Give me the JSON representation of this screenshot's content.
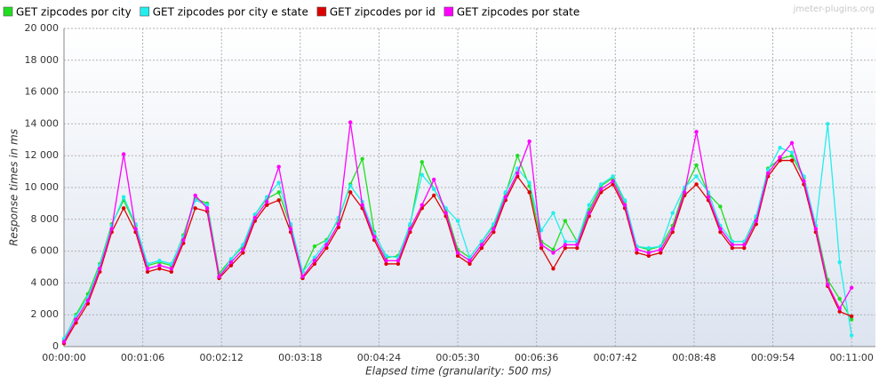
{
  "chart_data": {
    "type": "line",
    "watermark": "jmeter-plugins.org",
    "xlabel": "Elapsed time (granularity: 500 ms)",
    "ylabel": "Response times in ms",
    "xlim": [
      0,
      680
    ],
    "ylim": [
      0,
      20000
    ],
    "grid": true,
    "legend": "top",
    "xticks": [
      {
        "value": 0,
        "label": "00:00:00"
      },
      {
        "value": 66,
        "label": "00:01:06"
      },
      {
        "value": 132,
        "label": "00:02:12"
      },
      {
        "value": 198,
        "label": "00:03:18"
      },
      {
        "value": 264,
        "label": "00:04:24"
      },
      {
        "value": 330,
        "label": "00:05:30"
      },
      {
        "value": 396,
        "label": "00:06:36"
      },
      {
        "value": 462,
        "label": "00:07:42"
      },
      {
        "value": 528,
        "label": "00:08:48"
      },
      {
        "value": 594,
        "label": "00:09:54"
      },
      {
        "value": 660,
        "label": "00:11:00"
      }
    ],
    "yticks": [
      0,
      {
        "value": 2000,
        "label": "2 000"
      },
      {
        "value": 4000,
        "label": "4 000"
      },
      {
        "value": 6000,
        "label": "6 000"
      },
      {
        "value": 8000,
        "label": "8 000"
      },
      {
        "value": 10000,
        "label": "10 000"
      },
      {
        "value": 12000,
        "label": "12 000"
      },
      {
        "value": 14000,
        "label": "14 000"
      },
      {
        "value": 16000,
        "label": "16 000"
      },
      {
        "value": 18000,
        "label": "18 000"
      },
      {
        "value": 20000,
        "label": "20 000"
      }
    ],
    "x": [
      0,
      10,
      20,
      30,
      40,
      50,
      60,
      70,
      80,
      90,
      100,
      110,
      120,
      130,
      140,
      150,
      160,
      170,
      180,
      190,
      200,
      210,
      220,
      230,
      240,
      250,
      260,
      270,
      280,
      290,
      300,
      310,
      320,
      330,
      340,
      350,
      360,
      370,
      380,
      390,
      400,
      410,
      420,
      430,
      440,
      450,
      460,
      470,
      480,
      490,
      500,
      510,
      520,
      530,
      540,
      550,
      560,
      570,
      580,
      590,
      600,
      610,
      620,
      630,
      640,
      650,
      660
    ],
    "series": [
      {
        "name": "GET zipcodes por city",
        "color": "#22dd22",
        "values": [
          400,
          2000,
          3300,
          5200,
          7700,
          9200,
          7600,
          5100,
          5300,
          5100,
          7000,
          9300,
          9000,
          4600,
          5500,
          6300,
          8300,
          9300,
          9700,
          7600,
          4700,
          6300,
          6700,
          8000,
          10200,
          11800,
          7200,
          5600,
          5700,
          7600,
          11600,
          9900,
          8600,
          6100,
          5600,
          6600,
          7600,
          9600,
          12000,
          10100,
          6600,
          6100,
          7900,
          6600,
          8600,
          10100,
          10600,
          9100,
          6300,
          6100,
          6300,
          7600,
          9900,
          11400,
          9600,
          8800,
          6600,
          6600,
          8100,
          11200,
          11800,
          12000,
          10600,
          7600,
          4200,
          3000,
          1700
        ]
      },
      {
        "name": "GET zipcodes por city e state",
        "color": "#22eeee",
        "values": [
          500,
          1900,
          3100,
          5100,
          7600,
          9400,
          7700,
          5200,
          5400,
          5200,
          6900,
          9200,
          8900,
          4400,
          5500,
          6400,
          8300,
          9400,
          10300,
          7700,
          4700,
          5600,
          6600,
          8100,
          10100,
          9100,
          7100,
          5700,
          5600,
          7700,
          10800,
          9900,
          8700,
          7900,
          5600,
          6600,
          7700,
          9700,
          11200,
          10300,
          7300,
          8400,
          6600,
          6600,
          8900,
          10200,
          10700,
          9200,
          6300,
          6200,
          6300,
          8400,
          10000,
          10700,
          9700,
          7600,
          6600,
          6600,
          8200,
          11100,
          12500,
          12200,
          10700,
          7600,
          14000,
          5300,
          700
        ]
      },
      {
        "name": "GET zipcodes por id",
        "color": "#dd0000",
        "values": [
          200,
          1500,
          2700,
          4700,
          7200,
          8700,
          7200,
          4700,
          4900,
          4700,
          6500,
          8700,
          8500,
          4300,
          5100,
          5900,
          7900,
          8900,
          9200,
          7200,
          4300,
          5200,
          6200,
          7500,
          9700,
          8700,
          6700,
          5200,
          5200,
          7200,
          8700,
          9500,
          8200,
          5700,
          5200,
          6200,
          7200,
          9200,
          10700,
          9700,
          6200,
          4900,
          6200,
          6200,
          8200,
          9700,
          10200,
          8700,
          5900,
          5700,
          5900,
          7200,
          9500,
          10200,
          9200,
          7200,
          6200,
          6200,
          7700,
          10700,
          11700,
          11700,
          10200,
          7200,
          3800,
          2200,
          1900
        ]
      },
      {
        "name": "GET zipcodes por state",
        "color": "#ff00ff",
        "values": [
          300,
          1700,
          2900,
          4900,
          7400,
          12100,
          7400,
          4900,
          5100,
          4900,
          6700,
          9500,
          8700,
          4400,
          5300,
          6100,
          8100,
          9100,
          11300,
          7400,
          4400,
          5400,
          6400,
          7700,
          14100,
          8900,
          6900,
          5400,
          5400,
          7400,
          8900,
          10500,
          8400,
          5900,
          5400,
          6400,
          7400,
          9400,
          10900,
          12900,
          6400,
          5900,
          6400,
          6400,
          8400,
          9900,
          10400,
          8900,
          6100,
          5900,
          6100,
          7400,
          9700,
          13500,
          9400,
          7400,
          6400,
          6400,
          7900,
          10900,
          11900,
          12800,
          10400,
          7400,
          3900,
          2400,
          3700
        ]
      }
    ]
  }
}
